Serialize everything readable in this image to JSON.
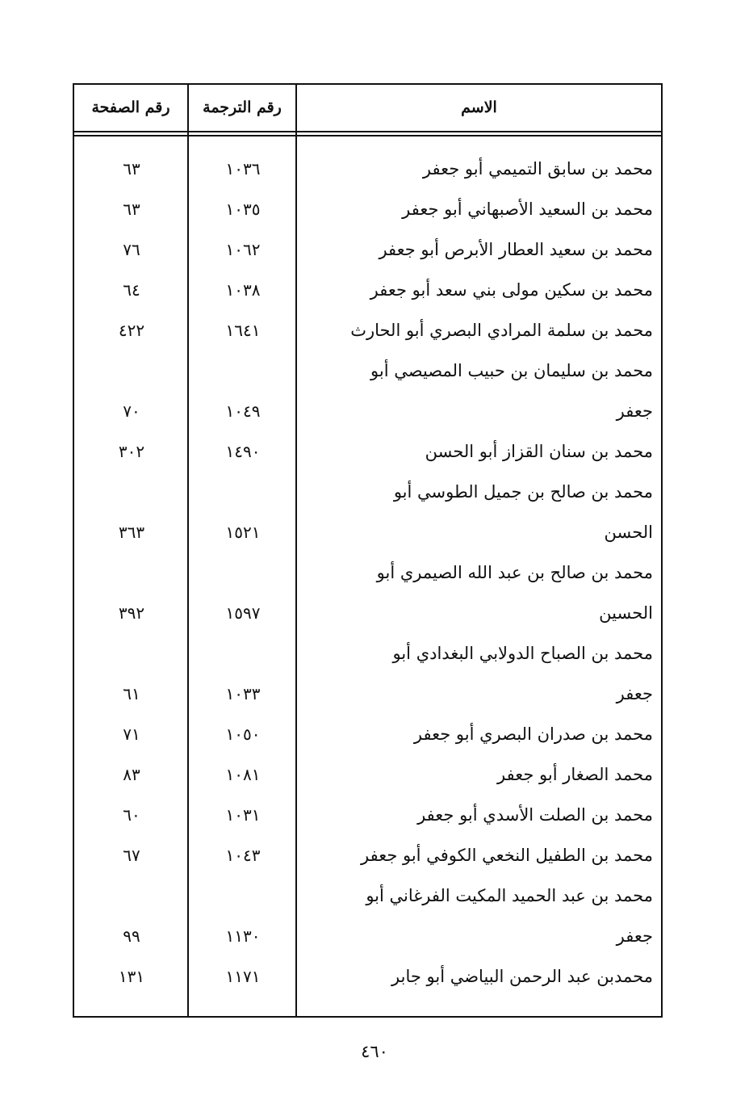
{
  "header": {
    "name": "الاسم",
    "translation_no": "رقم الترجمة",
    "page_no": "رقم الصفحة"
  },
  "rows": [
    {
      "lines": [
        "محمد بن  سابق التميمي أبو جعفر"
      ],
      "translation": "١٠٣٦",
      "page": "٦٣"
    },
    {
      "lines": [
        "محمد بن السعيد الأصبهاني أبو جعفر"
      ],
      "translation": "١٠٣٥",
      "page": "٦٣"
    },
    {
      "lines": [
        "محمد بن سعيد العطار الأبرص أبو جعفر"
      ],
      "translation": "١٠٦٢",
      "page": "٧٦"
    },
    {
      "lines": [
        "محمد بن سكين مولى بني سعد أبو جعفر"
      ],
      "translation": "١٠٣٨",
      "page": "٦٤"
    },
    {
      "lines": [
        "محمد بن سلمة  المرادي البصري أبو الحارث"
      ],
      "translation": "١٦٤١",
      "page": "٤٢٢"
    },
    {
      "lines": [
        "محمد بن سليمان بن حبيب المصيصي أبو",
        "جعفر"
      ],
      "translation": "١٠٤٩",
      "page": "٧٠"
    },
    {
      "lines": [
        "محمد بن سنان القزاز أبو الحسن"
      ],
      "translation": "١٤٩٠",
      "page": "٣٠٢"
    },
    {
      "lines": [
        "محمد  بن  صالح  بن  جميل  الطوسي  أبو",
        "الحسن"
      ],
      "translation": "١٥٢١",
      "page": "٣٦٣"
    },
    {
      "lines": [
        "محمد بن صالح بن عبد الله الصيمري أبو",
        "الحسين"
      ],
      "translation": "١٥٩٧",
      "page": "٣٩٢"
    },
    {
      "lines": [
        "محمد بن الصباح الدولابي البغدادي أبو",
        "جعفر"
      ],
      "translation": "١٠٣٣",
      "page": "٦١"
    },
    {
      "lines": [
        "محمد بن صدران البصري أبو جعفر"
      ],
      "translation": "١٠٥٠",
      "page": "٧١"
    },
    {
      "lines": [
        "محمد الصغار أبو جعفر"
      ],
      "translation": "١٠٨١",
      "page": "٨٣"
    },
    {
      "lines": [
        "محمد بن الصلت الأسدي أبو جعفر"
      ],
      "translation": "١٠٣١",
      "page": "٦٠"
    },
    {
      "lines": [
        "محمد بن الطفيل النخعي الكوفي أبو جعفر"
      ],
      "translation": "١٠٤٣",
      "page": "٦٧"
    },
    {
      "lines": [
        "محمد  بن  عبد  الحميد  المكيت  الفرغاني  أبو",
        "جعفر"
      ],
      "translation": "١١٣٠",
      "page": "٩٩"
    },
    {
      "lines": [
        "محمدبن عبد الرحمن البياضي أبو جابر"
      ],
      "translation": "١١٧١",
      "page": "١٣١"
    }
  ],
  "footer": {
    "page_number": "٤٦٠"
  }
}
